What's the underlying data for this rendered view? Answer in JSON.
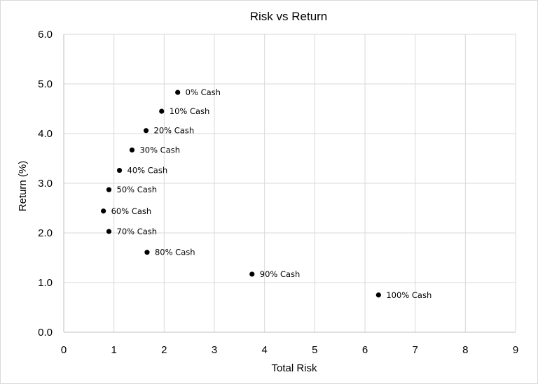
{
  "chart_data": {
    "type": "scatter",
    "title": "Risk vs Return",
    "xlabel": "Total Risk",
    "ylabel": "Return (%)",
    "xlim": [
      0,
      9
    ],
    "ylim": [
      0,
      6
    ],
    "xticks": [
      "0",
      "1",
      "2",
      "3",
      "4",
      "5",
      "6",
      "7",
      "8",
      "9"
    ],
    "yticks": [
      "0.0",
      "1.0",
      "2.0",
      "3.0",
      "4.0",
      "5.0",
      "6.0"
    ],
    "grid": true,
    "legend": "none",
    "marker_color": "#000000",
    "points": [
      {
        "label": "0% Cash",
        "x": 2.27,
        "y": 4.83
      },
      {
        "label": "10% Cash",
        "x": 1.95,
        "y": 4.45
      },
      {
        "label": "20% Cash",
        "x": 1.64,
        "y": 4.06
      },
      {
        "label": "30% Cash",
        "x": 1.36,
        "y": 3.67
      },
      {
        "label": "40% Cash",
        "x": 1.11,
        "y": 3.26
      },
      {
        "label": "50% Cash",
        "x": 0.9,
        "y": 2.87
      },
      {
        "label": "60% Cash",
        "x": 0.79,
        "y": 2.44
      },
      {
        "label": "70% Cash",
        "x": 0.9,
        "y": 2.03
      },
      {
        "label": "80% Cash",
        "x": 1.66,
        "y": 1.61
      },
      {
        "label": "90% Cash",
        "x": 3.75,
        "y": 1.17
      },
      {
        "label": "100% Cash",
        "x": 6.27,
        "y": 0.75
      }
    ]
  }
}
